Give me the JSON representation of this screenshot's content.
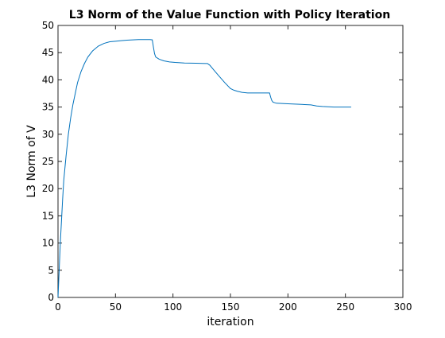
{
  "chart_data": {
    "type": "line",
    "title": "L3 Norm of the Value Function with Policy Iteration",
    "xlabel": "iteration",
    "ylabel": "L3 Norm of V",
    "xlim": [
      0,
      300
    ],
    "ylim": [
      0,
      50
    ],
    "xticks": [
      "0",
      "50",
      "100",
      "150",
      "200",
      "250",
      "300"
    ],
    "yticks": [
      "0",
      "5",
      "10",
      "15",
      "20",
      "25",
      "30",
      "35",
      "40",
      "45",
      "50"
    ],
    "grid": false,
    "line_color": "#0072bd",
    "series": [
      {
        "x": [
          0,
          1,
          2,
          3,
          4,
          5,
          7,
          9,
          11,
          13,
          15,
          17,
          20,
          23,
          26,
          30,
          35,
          40,
          45,
          50,
          55,
          60,
          65,
          70,
          75,
          80,
          82,
          83,
          84,
          85,
          88,
          92,
          97,
          102,
          110,
          120,
          130,
          132,
          136,
          140,
          145,
          150,
          153,
          156,
          160,
          165,
          170,
          175,
          180,
          184,
          185,
          186,
          187,
          190,
          200,
          210,
          220,
          225,
          230,
          240,
          250,
          255
        ],
        "y": [
          0,
          5,
          10,
          14,
          18,
          21.5,
          26,
          30,
          33,
          35.5,
          37.5,
          39.5,
          41.5,
          43,
          44.2,
          45.3,
          46.2,
          46.7,
          47,
          47.1,
          47.2,
          47.3,
          47.35,
          47.4,
          47.4,
          47.4,
          47.35,
          46,
          44.8,
          44.2,
          43.8,
          43.5,
          43.3,
          43.2,
          43.1,
          43.05,
          43.0,
          42.7,
          41.7,
          40.7,
          39.5,
          38.4,
          38.1,
          37.9,
          37.7,
          37.6,
          37.6,
          37.6,
          37.6,
          37.6,
          36.8,
          36.2,
          35.9,
          35.7,
          35.6,
          35.5,
          35.4,
          35.2,
          35.1,
          35.0,
          35.0,
          35.0
        ]
      }
    ]
  }
}
